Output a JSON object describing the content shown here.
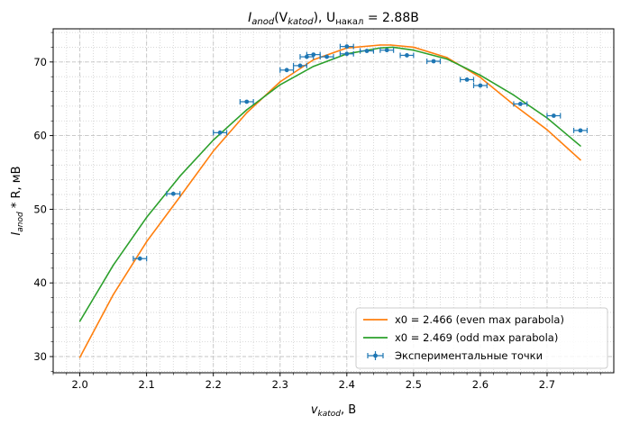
{
  "chart_data": {
    "type": "line",
    "title_main": "I",
    "title_main_sub": "anod",
    "title_arg": "(V",
    "title_arg_sub": "katod",
    "title_mid": "), U",
    "title_mid_sub": "накал",
    "title_end": " = 2.88B",
    "xlabel_main": "v",
    "xlabel_sub": "katod",
    "xlabel_unit": ", B",
    "ylabel_main": "I",
    "ylabel_sub": "anod",
    "ylabel_unit": " * R, мВ",
    "xlim": [
      1.96,
      2.8
    ],
    "ylim": [
      27.8,
      74.5
    ],
    "xticks": [
      2.0,
      2.1,
      2.2,
      2.3,
      2.4,
      2.5,
      2.6,
      2.7
    ],
    "xtick_labels": [
      "2.0",
      "2.1",
      "2.2",
      "2.3",
      "2.4",
      "2.5",
      "2.6",
      "2.7"
    ],
    "yticks": [
      30,
      40,
      50,
      60,
      70
    ],
    "ytick_labels": [
      "30",
      "40",
      "50",
      "60",
      "70"
    ],
    "grid": true,
    "legend_position": "bottom-right",
    "series": [
      {
        "name": "x0 = 2.466 (even max parabola)",
        "kind": "line",
        "color": "#ff7f0e",
        "x": [
          2.0,
          2.05,
          2.1,
          2.15,
          2.2,
          2.25,
          2.3,
          2.35,
          2.4,
          2.45,
          2.466,
          2.5,
          2.55,
          2.6,
          2.65,
          2.7,
          2.75
        ],
        "y": [
          29.9,
          38.4,
          45.6,
          51.7,
          57.9,
          63.1,
          67.3,
          70.3,
          71.9,
          72.3,
          72.3,
          72.0,
          70.6,
          67.9,
          64.2,
          60.8,
          56.7
        ]
      },
      {
        "name": "x0 = 2.469 (odd max parabola)",
        "kind": "line",
        "color": "#2ca02c",
        "x": [
          2.0,
          2.05,
          2.1,
          2.15,
          2.2,
          2.25,
          2.3,
          2.35,
          2.4,
          2.45,
          2.469,
          2.5,
          2.55,
          2.6,
          2.65,
          2.7,
          2.75
        ],
        "y": [
          34.8,
          42.4,
          48.9,
          54.5,
          59.4,
          63.5,
          66.9,
          69.4,
          71.1,
          71.9,
          72.0,
          71.6,
          70.4,
          68.2,
          65.5,
          62.4,
          58.6
        ]
      },
      {
        "name": "Экспериментальные точки",
        "kind": "errorbar",
        "color": "#1f77b4",
        "xerr": 0.01,
        "x": [
          2.09,
          2.14,
          2.21,
          2.25,
          2.31,
          2.33,
          2.34,
          2.35,
          2.37,
          2.4,
          2.4,
          2.43,
          2.46,
          2.49,
          2.53,
          2.58,
          2.6,
          2.66,
          2.71,
          2.75
        ],
        "y": [
          43.3,
          52.1,
          60.4,
          64.6,
          68.9,
          69.5,
          70.7,
          71.0,
          70.7,
          72.1,
          71.1,
          71.5,
          71.6,
          70.9,
          70.1,
          67.6,
          66.8,
          64.3,
          62.7,
          60.7
        ]
      }
    ]
  }
}
